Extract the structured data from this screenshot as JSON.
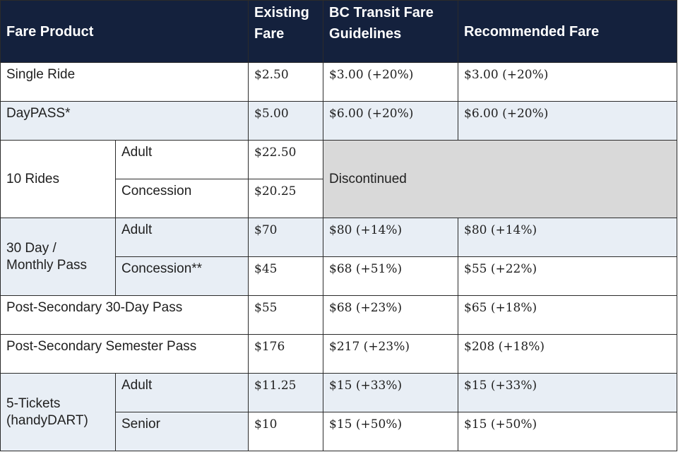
{
  "header": {
    "fare_product": "Fare Product",
    "existing_fare": "Existing Fare",
    "bc_transit_guidelines": "BC Transit Fare Guidelines",
    "recommended_fare": "Recommended Fare"
  },
  "rows": {
    "single_ride": {
      "product": "Single Ride",
      "existing": "$2.50",
      "guidelines": "$3.00 (+20%)",
      "recommended": "$3.00 (+20%)"
    },
    "daypass": {
      "product": "DayPASS*",
      "existing": "$5.00",
      "guidelines": "$6.00 (+20%)",
      "recommended": "$6.00 (+20%)"
    },
    "ten_rides": {
      "product": "10 Rides",
      "adult_label": "Adult",
      "adult_existing": "$22.50",
      "concession_label": "Concession",
      "concession_existing": "$20.25",
      "status": "Discontinued"
    },
    "monthly_pass": {
      "product_line1": "30 Day /",
      "product_line2": "Monthly Pass",
      "adult_label": "Adult",
      "adult_existing": "$70",
      "adult_guidelines": "$80 (+14%)",
      "adult_recommended": "$80 (+14%)",
      "concession_label": "Concession**",
      "concession_existing": "$45",
      "concession_guidelines": "$68 (+51%)",
      "concession_recommended": "$55 (+22%)"
    },
    "post_secondary_30": {
      "product": "Post-Secondary 30-Day Pass",
      "existing": "$55",
      "guidelines": "$68 (+23%)",
      "recommended": "$65 (+18%)"
    },
    "post_secondary_semester": {
      "product": "Post-Secondary Semester Pass",
      "existing": "$176",
      "guidelines": "$217 (+23%)",
      "recommended": "$208 (+18%)"
    },
    "five_tickets": {
      "product_line1": "5-Tickets",
      "product_line2": "(handyDART)",
      "adult_label": "Adult",
      "adult_existing": "$11.25",
      "adult_guidelines": "$15 (+33%)",
      "adult_recommended": "$15 (+33%)",
      "senior_label": "Senior",
      "senior_existing": "$10",
      "senior_guidelines": "$15 (+50%)",
      "senior_recommended": "$15 (+50%)"
    }
  },
  "colors": {
    "header_bg": "#14213d",
    "shade": "#e8eef5",
    "discontinued_bg": "#d9d9d9"
  }
}
